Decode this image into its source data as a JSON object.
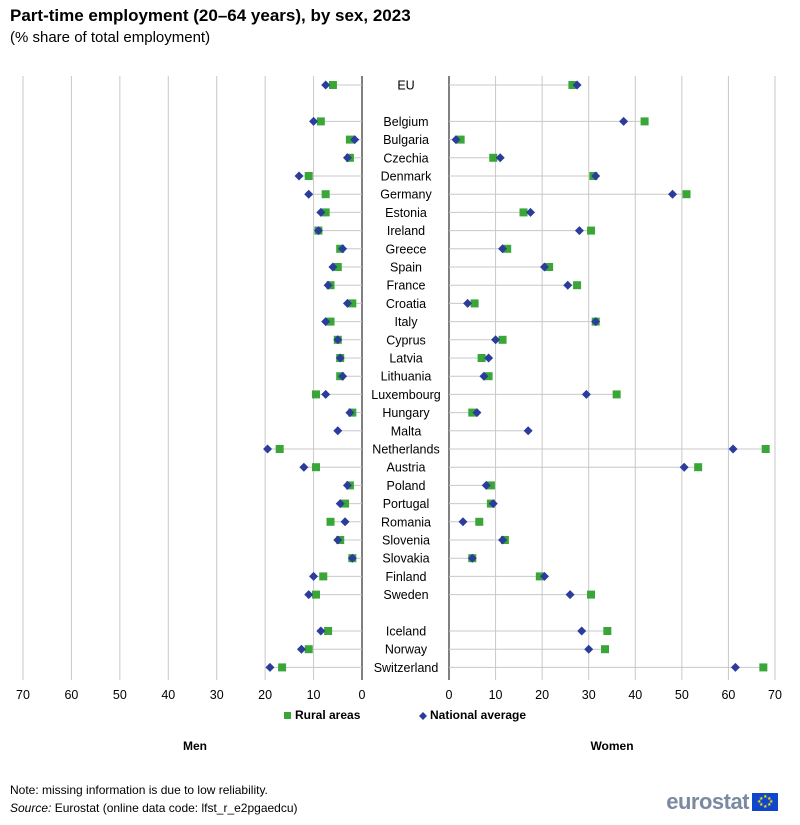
{
  "header": {
    "title": "Part-time employment (20–64 years), by sex, 2023",
    "subtitle": "(% share of total employment)"
  },
  "footer": {
    "note": "Note: missing information is due to low reliability.",
    "source_label": "Source:",
    "source_text": " Eurostat (online data code: lfst_r_e2pgaedcu)",
    "logo": "eurostat"
  },
  "colors": {
    "rural": "#3aa637",
    "national": "#2b3c9c",
    "grid": "#c8c8c8",
    "connector": "#c8c8c8"
  },
  "chart_data": {
    "type": "scatter",
    "layout": "butterfly dot plot",
    "panels": [
      {
        "name": "Men",
        "xlim": [
          0,
          70
        ],
        "direction": "reversed",
        "ticks": [
          70,
          60,
          50,
          40,
          30,
          20,
          10,
          0
        ]
      },
      {
        "name": "Women",
        "xlim": [
          0,
          70
        ],
        "direction": "normal",
        "ticks": [
          0,
          10,
          20,
          30,
          40,
          50,
          60,
          70
        ]
      }
    ],
    "legend": [
      {
        "key": "rural",
        "label": "Rural areas",
        "marker": "square"
      },
      {
        "key": "national",
        "label": "National average",
        "marker": "diamond"
      }
    ],
    "categories": [
      "EU",
      "Belgium",
      "Bulgaria",
      "Czechia",
      "Denmark",
      "Germany",
      "Estonia",
      "Ireland",
      "Greece",
      "Spain",
      "France",
      "Croatia",
      "Italy",
      "Cyprus",
      "Latvia",
      "Lithuania",
      "Luxembourg",
      "Hungary",
      "Malta",
      "Netherlands",
      "Austria",
      "Poland",
      "Portugal",
      "Romania",
      "Slovenia",
      "Slovakia",
      "Finland",
      "Sweden",
      "Iceland",
      "Norway",
      "Switzerland"
    ],
    "group_breaks_after": [
      "EU",
      "Sweden"
    ],
    "men": {
      "rural": [
        6.0,
        8.5,
        2.5,
        2.5,
        11.0,
        7.5,
        7.5,
        9.0,
        4.5,
        5.0,
        6.5,
        2.0,
        6.5,
        5.0,
        4.5,
        4.5,
        9.5,
        2.0,
        null,
        17.0,
        9.5,
        2.5,
        3.5,
        6.5,
        4.5,
        2.0,
        8.0,
        9.5,
        7.0,
        11.0,
        16.5
      ],
      "national": [
        7.5,
        10.0,
        1.5,
        3.0,
        13.0,
        11.0,
        8.5,
        9.0,
        4.0,
        6.0,
        7.0,
        3.0,
        7.5,
        5.0,
        4.5,
        4.0,
        7.5,
        2.5,
        5.0,
        19.5,
        12.0,
        3.0,
        4.5,
        3.5,
        5.0,
        2.0,
        10.0,
        11.0,
        8.5,
        12.5,
        19.0
      ]
    },
    "women": {
      "rural": [
        26.5,
        42.0,
        2.5,
        9.5,
        31.0,
        51.0,
        16.0,
        30.5,
        12.5,
        21.5,
        27.5,
        5.5,
        31.5,
        11.5,
        7.0,
        8.5,
        36.0,
        5.0,
        null,
        68.0,
        53.5,
        9.0,
        9.0,
        6.5,
        12.0,
        5.0,
        19.5,
        30.5,
        34.0,
        33.5,
        67.5
      ],
      "national": [
        27.5,
        37.5,
        1.5,
        11.0,
        31.5,
        48.0,
        17.5,
        28.0,
        11.5,
        20.5,
        25.5,
        4.0,
        31.5,
        10.0,
        8.5,
        7.5,
        29.5,
        6.0,
        17.0,
        61.0,
        50.5,
        8.0,
        9.5,
        3.0,
        11.5,
        5.0,
        20.5,
        26.0,
        28.5,
        30.0,
        61.5
      ]
    }
  }
}
